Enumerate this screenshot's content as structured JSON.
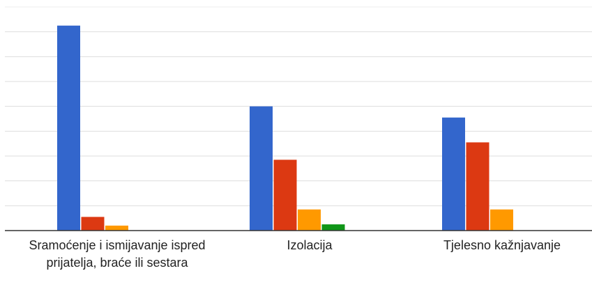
{
  "chart_data": {
    "type": "bar",
    "categories": [
      "Sramoćenje i ismijavanje ispred prijatelja, braće ili sestara",
      "Izolacija",
      "Tjelesno kažnjavanje"
    ],
    "series": [
      {
        "color": "#3366cc",
        "values": [
          8.25,
          5.0,
          4.55
        ]
      },
      {
        "color": "#dc3912",
        "values": [
          0.55,
          2.85,
          3.55
        ]
      },
      {
        "color": "#ff9900",
        "values": [
          0.2,
          0.85,
          0.85
        ]
      },
      {
        "color": "#109618",
        "values": [
          0,
          0.25,
          0
        ]
      }
    ],
    "ylim": [
      0,
      9
    ],
    "yticks": [
      0,
      1,
      2,
      3,
      4,
      5,
      6,
      7,
      8,
      9
    ],
    "grid": true
  }
}
